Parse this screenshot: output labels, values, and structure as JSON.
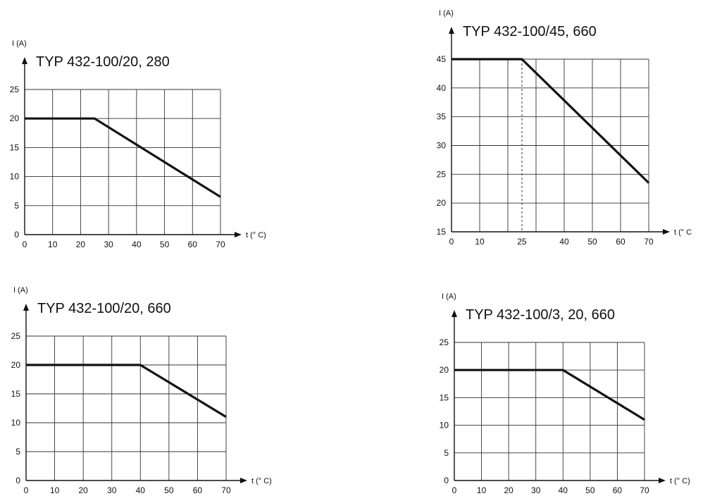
{
  "chart_data": [
    {
      "type": "line",
      "title": "TYP 432-100/20, 280",
      "xlabel": "t (° C)",
      "ylabel": "I (A)",
      "x_ticks": [
        0,
        10,
        20,
        30,
        40,
        50,
        60,
        70
      ],
      "y_ticks": [
        0,
        5,
        10,
        15,
        20,
        25
      ],
      "xlim": [
        0,
        70
      ],
      "ylim": [
        0,
        25
      ],
      "grid": true,
      "series": [
        {
          "x": [
            0,
            25,
            70
          ],
          "y": [
            20,
            20,
            6.5
          ]
        }
      ]
    },
    {
      "type": "line",
      "title": "TYP 432-100/45, 660",
      "xlabel": "t (° C",
      "ylabel": "I (A)",
      "x_ticks": [
        0,
        10,
        25,
        40,
        50,
        60,
        70
      ],
      "y_ticks": [
        15,
        20,
        25,
        30,
        35,
        40,
        45
      ],
      "xlim": [
        0,
        70
      ],
      "ylim": [
        15,
        45
      ],
      "grid": true,
      "dashed_x": 25,
      "series": [
        {
          "x": [
            0,
            25,
            70
          ],
          "y": [
            45,
            45,
            23.5
          ]
        }
      ]
    },
    {
      "type": "line",
      "title": "TYP 432-100/20, 660",
      "xlabel": "t (° C)",
      "ylabel": "I (A)",
      "x_ticks": [
        0,
        10,
        20,
        30,
        40,
        50,
        60,
        70
      ],
      "y_ticks": [
        0,
        5,
        10,
        15,
        20,
        25
      ],
      "xlim": [
        0,
        70
      ],
      "ylim": [
        0,
        25
      ],
      "grid": true,
      "series": [
        {
          "x": [
            0,
            40,
            70
          ],
          "y": [
            20,
            20,
            11
          ]
        }
      ]
    },
    {
      "type": "line",
      "title": "TYP 432-100/3, 20, 660",
      "xlabel": "t (° C)",
      "ylabel": "I (A)",
      "x_ticks": [
        0,
        10,
        20,
        30,
        40,
        50,
        60,
        70
      ],
      "y_ticks": [
        0,
        5,
        10,
        15,
        20,
        25
      ],
      "xlim": [
        0,
        70
      ],
      "ylim": [
        0,
        25
      ],
      "grid": true,
      "series": [
        {
          "x": [
            0,
            40,
            70
          ],
          "y": [
            20,
            20,
            11
          ]
        }
      ]
    }
  ]
}
